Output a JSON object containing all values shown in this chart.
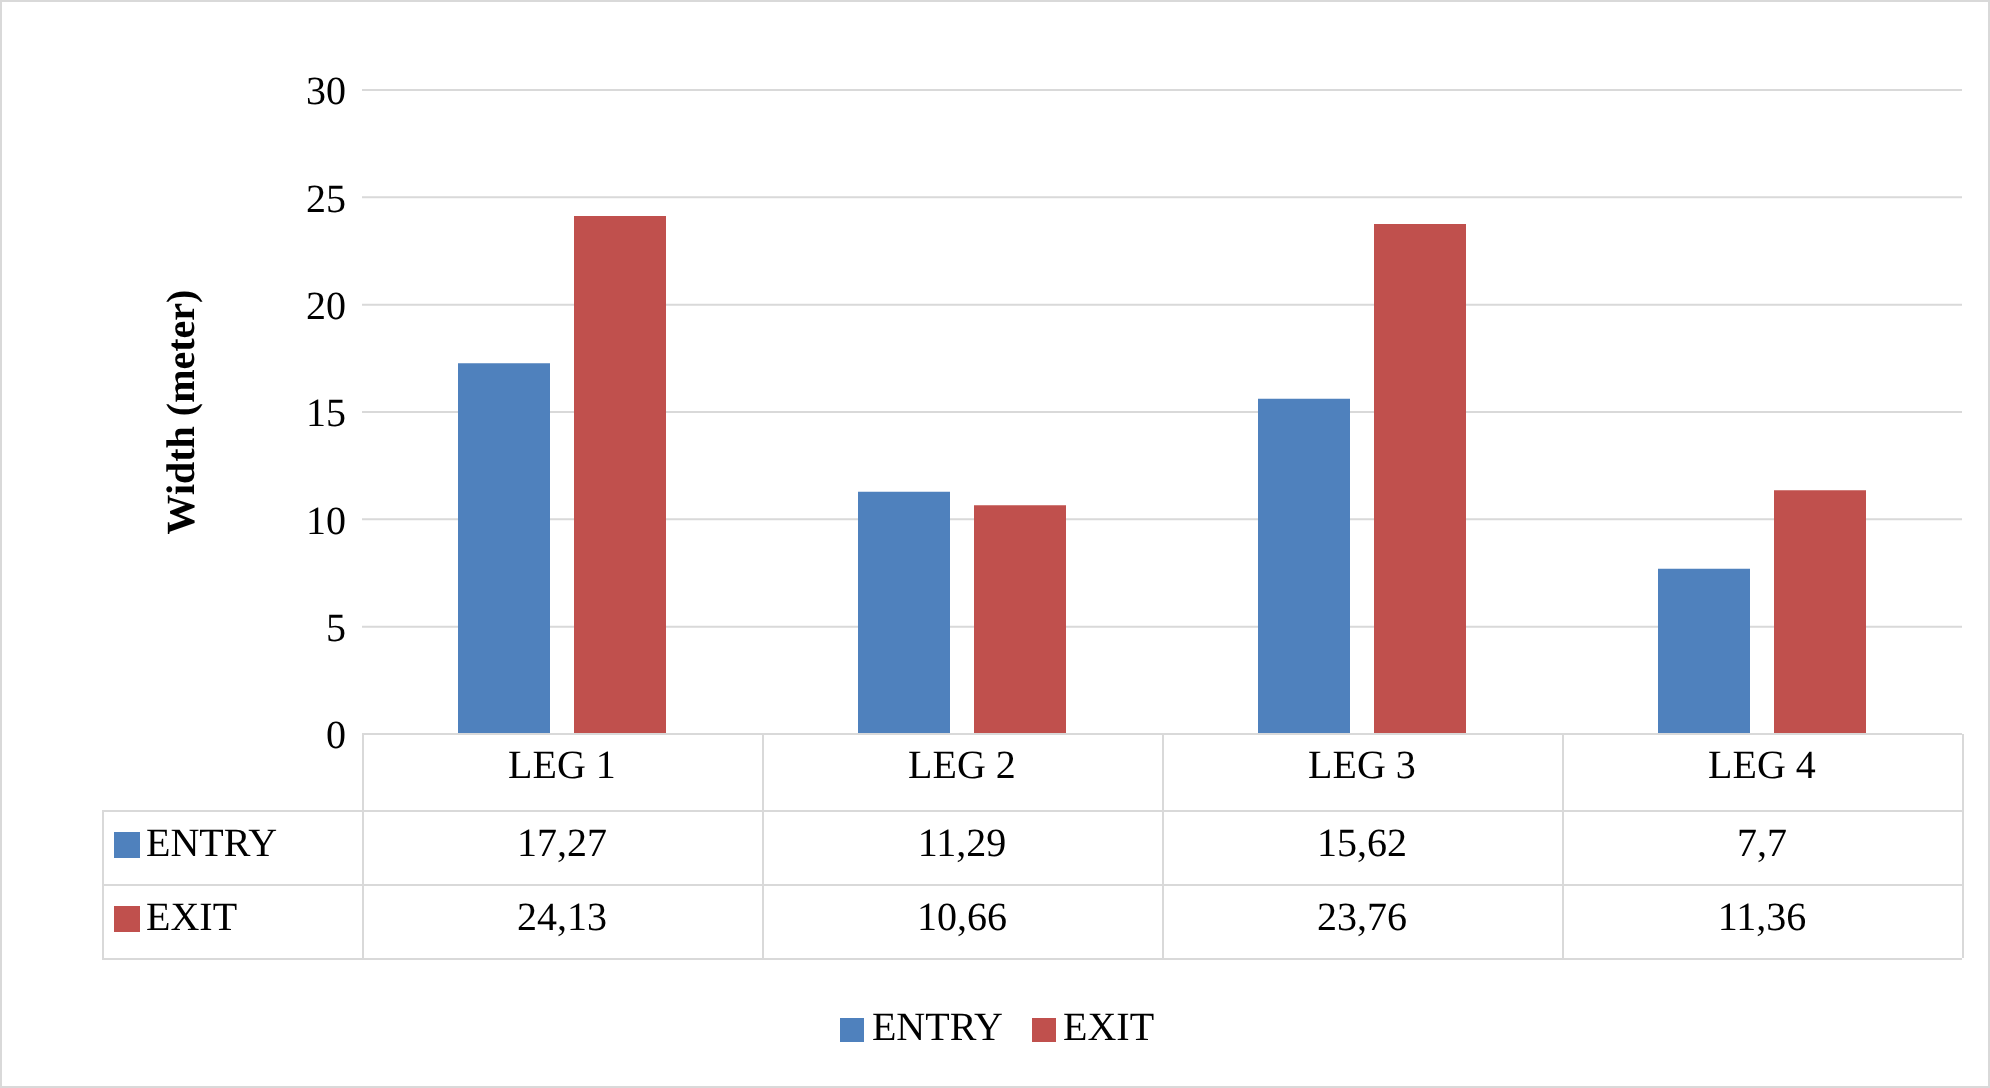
{
  "chart_data": {
    "type": "bar",
    "ylabel": "Width (meter)",
    "categories": [
      "LEG 1",
      "LEG 2",
      "LEG 3",
      "LEG 4"
    ],
    "series": [
      {
        "name": "ENTRY",
        "color": "#4f81bd",
        "values": [
          17.27,
          11.29,
          15.62,
          7.7
        ],
        "value_labels": [
          "17,27",
          "11,29",
          "15,62",
          "7,7"
        ]
      },
      {
        "name": "EXIT",
        "color": "#c0504d",
        "values": [
          24.13,
          10.66,
          23.76,
          11.36
        ],
        "value_labels": [
          "24,13",
          "10,66",
          "23,76",
          "11,36"
        ]
      }
    ],
    "ylim": [
      0,
      30
    ],
    "yticks": [
      0,
      5,
      10,
      15,
      20,
      25,
      30
    ],
    "grid": "y",
    "legend": "bottom"
  }
}
